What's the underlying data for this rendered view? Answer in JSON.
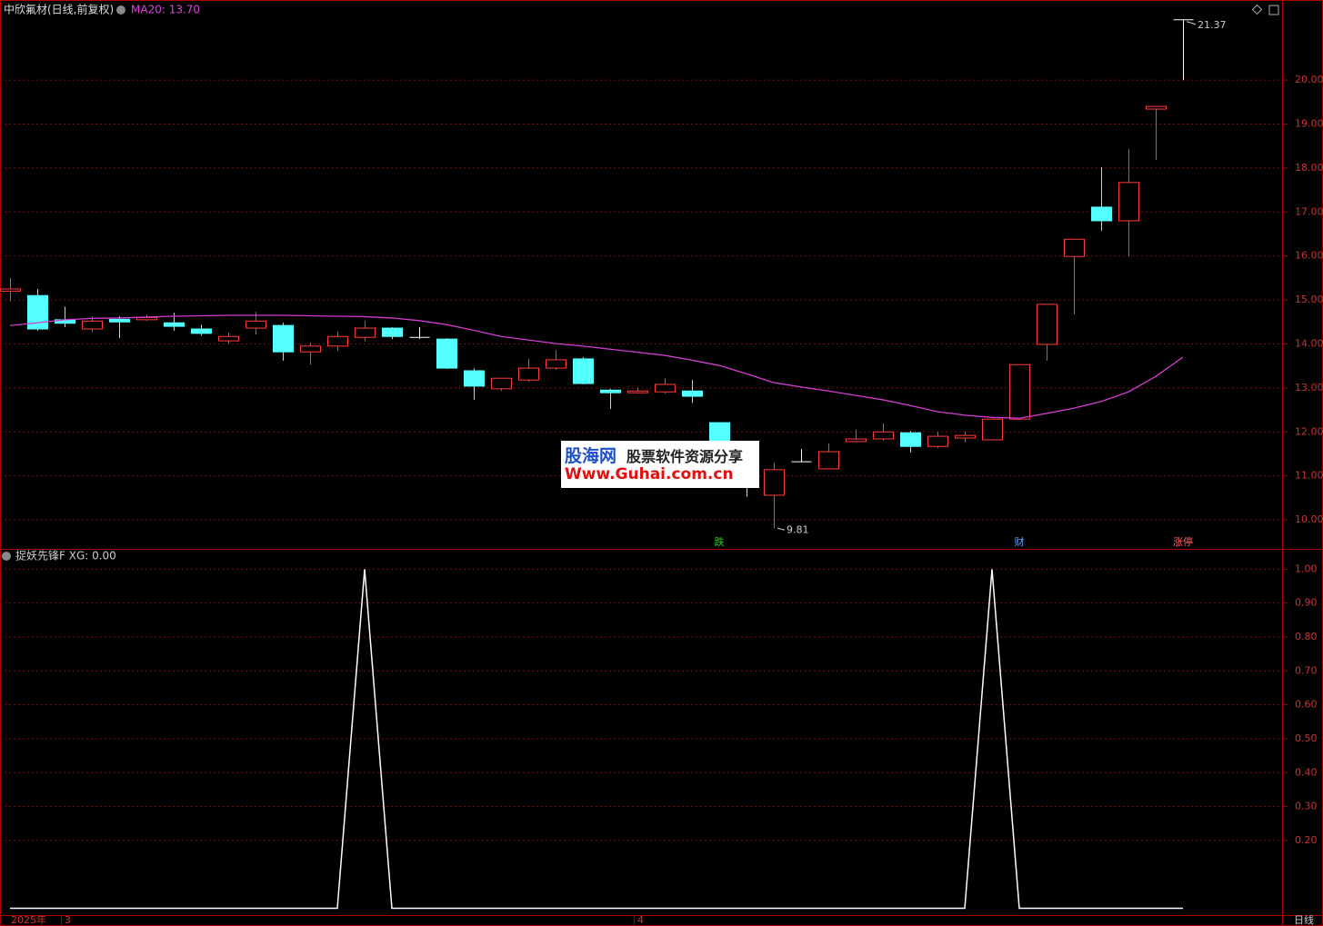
{
  "chart_data": [
    {
      "type": "candlestick",
      "title": "中欣氟材(日线,前复权)",
      "ma_label": "MA20: 13.70",
      "open": [
        15.2,
        15.1,
        14.55,
        14.34,
        14.56,
        14.55,
        14.48,
        14.34,
        14.07,
        14.36,
        14.42,
        13.82,
        13.95,
        14.15,
        14.36,
        14.15,
        14.11,
        13.39,
        12.98,
        13.18,
        13.45,
        13.66,
        12.95,
        12.89,
        12.91,
        12.93,
        12.21,
        11.55,
        10.56,
        11.32,
        11.16,
        11.78,
        11.84,
        11.98,
        11.67,
        11.86,
        11.82,
        12.29,
        13.99,
        15.99,
        17.11,
        16.8,
        19.34,
        21.37
      ],
      "high": [
        15.5,
        15.25,
        14.85,
        14.63,
        14.63,
        14.67,
        14.71,
        14.44,
        14.26,
        14.73,
        14.48,
        14.03,
        14.28,
        14.52,
        14.38,
        14.38,
        14.13,
        13.45,
        13.22,
        13.66,
        13.86,
        13.7,
        12.98,
        13.0,
        13.22,
        13.18,
        12.21,
        11.6,
        11.3,
        11.61,
        11.74,
        12.05,
        12.19,
        12.02,
        12.0,
        12.0,
        12.31,
        13.53,
        14.9,
        16.38,
        18.02,
        18.43,
        19.4,
        21.37
      ],
      "low": [
        14.97,
        14.3,
        14.38,
        14.28,
        14.13,
        14.52,
        14.3,
        14.19,
        14.01,
        14.21,
        13.62,
        13.53,
        13.84,
        14.07,
        14.11,
        14.11,
        13.43,
        12.73,
        12.93,
        13.14,
        13.41,
        13.08,
        12.52,
        12.87,
        12.87,
        12.66,
        11.67,
        10.52,
        9.81,
        11.32,
        11.16,
        11.76,
        11.8,
        11.53,
        11.63,
        11.76,
        11.82,
        12.29,
        13.62,
        14.67,
        16.57,
        15.99,
        18.18,
        20.0
      ],
      "close": [
        15.25,
        14.34,
        14.47,
        14.52,
        14.5,
        14.6,
        14.4,
        14.24,
        14.17,
        14.52,
        13.82,
        13.95,
        14.17,
        14.36,
        14.17,
        14.15,
        13.45,
        13.04,
        13.22,
        13.45,
        13.64,
        13.1,
        12.89,
        12.93,
        13.08,
        12.81,
        11.69,
        11.0,
        11.14,
        11.32,
        11.55,
        11.84,
        12.0,
        11.67,
        11.9,
        11.92,
        12.29,
        13.53,
        14.9,
        16.38,
        16.8,
        17.67,
        19.4,
        21.37
      ],
      "ma": {
        "color": "#d23cd2",
        "values": [
          14.42,
          14.48,
          14.55,
          14.58,
          14.59,
          14.61,
          14.63,
          14.64,
          14.65,
          14.65,
          14.65,
          14.64,
          14.63,
          14.62,
          14.59,
          14.53,
          14.44,
          14.31,
          14.17,
          14.09,
          14.01,
          13.95,
          13.88,
          13.81,
          13.74,
          13.63,
          13.51,
          13.32,
          13.12,
          13.02,
          12.93,
          12.83,
          12.73,
          12.6,
          12.46,
          12.38,
          12.33,
          12.31,
          12.42,
          12.54,
          12.69,
          12.91,
          13.26,
          13.7
        ]
      },
      "up_color": "#ff3c3c",
      "down_color": "#54ffff",
      "doji_color": "#ffffff",
      "high_label": "21.37",
      "low_label": "9.81",
      "markers": [
        {
          "index": 26,
          "label": "跌",
          "color": "#22cc22"
        },
        {
          "index": 37,
          "label": "财",
          "color": "#5aa0ff"
        },
        {
          "index": 43,
          "label": "涨停",
          "color": "#ff6060"
        }
      ],
      "ylim": [
        9.34,
        21.82
      ],
      "yticks": [
        {
          "value": 10,
          "label": "10.00"
        },
        {
          "value": 11,
          "label": "11.00"
        },
        {
          "value": 12,
          "label": "12.00"
        },
        {
          "value": 13,
          "label": "13.00"
        },
        {
          "value": 14,
          "label": "14.00"
        },
        {
          "value": 15,
          "label": "15.00"
        },
        {
          "value": 16,
          "label": "16.00"
        },
        {
          "value": 17,
          "label": "17.00"
        },
        {
          "value": 18,
          "label": "18.00"
        },
        {
          "value": 19,
          "label": "19.00"
        },
        {
          "value": 20,
          "label": "20.00"
        }
      ],
      "grid": true
    },
    {
      "type": "line",
      "title": "捉妖先锋F XG: 0.00",
      "values": [
        0,
        0,
        0,
        0,
        0,
        0,
        0,
        0,
        0,
        0,
        0,
        0,
        0,
        1,
        0,
        0,
        0,
        0,
        0,
        0,
        0,
        0,
        0,
        0,
        0,
        0,
        0,
        0,
        0,
        0,
        0,
        0,
        0,
        0,
        0,
        0,
        1,
        0,
        0,
        0,
        0,
        0,
        0,
        0
      ],
      "color": "#ffffff",
      "categories": [
        null,
        null,
        "3",
        null,
        null,
        null,
        null,
        null,
        null,
        null,
        null,
        null,
        null,
        null,
        null,
        null,
        null,
        null,
        null,
        null,
        null,
        null,
        null,
        "4",
        null,
        null,
        null,
        null,
        null,
        null,
        null,
        null,
        null,
        null,
        null,
        null,
        null,
        null,
        null,
        null,
        null,
        null,
        null,
        null
      ],
      "year_label": "2025年",
      "period_label": "日线",
      "ylim": [
        -0.02,
        1.06
      ],
      "yticks": [
        {
          "value": 0.2,
          "label": "0.20"
        },
        {
          "value": 0.3,
          "label": "0.30"
        },
        {
          "value": 0.4,
          "label": "0.40"
        },
        {
          "value": 0.5,
          "label": "0.50"
        },
        {
          "value": 0.6,
          "label": "0.60"
        },
        {
          "value": 0.7,
          "label": "0.70"
        },
        {
          "value": 0.8,
          "label": "0.80"
        },
        {
          "value": 0.9,
          "label": "0.90"
        },
        {
          "value": 1,
          "label": "1.00"
        }
      ],
      "grid": true
    }
  ],
  "watermark": {
    "brand": "股海网",
    "slogan": "股票软件资源分享",
    "url": "Www.Guhai.com.cn"
  }
}
